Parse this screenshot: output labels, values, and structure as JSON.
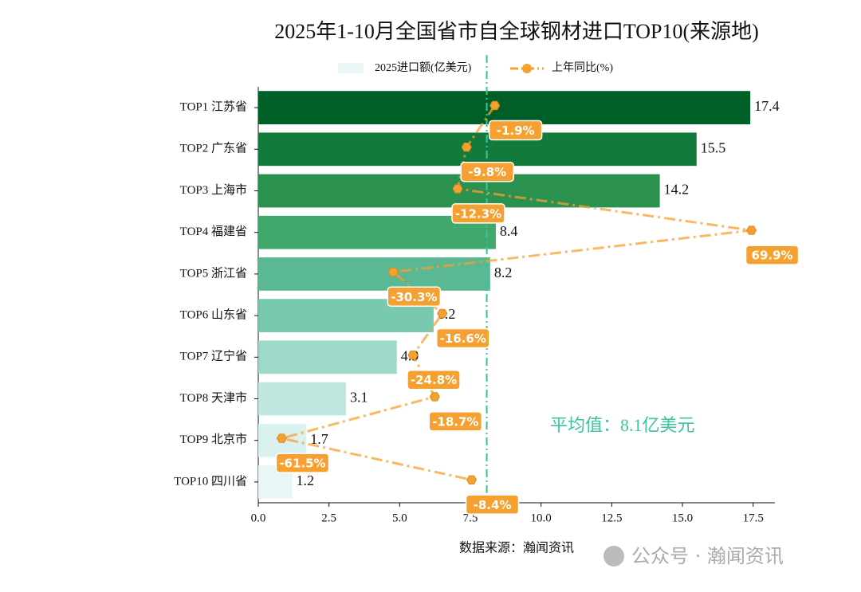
{
  "chart_data": {
    "type": "bar",
    "orientation": "horizontal",
    "title": "2025年1-10月全国省市自全球钢材进口TOP10(来源地)",
    "categories": [
      "TOP1 江苏省",
      "TOP2 广东省",
      "TOP3 上海市",
      "TOP4 福建省",
      "TOP5 浙江省",
      "TOP6 山东省",
      "TOP7 辽宁省",
      "TOP8 天津市",
      "TOP9 北京市",
      "TOP10 四川省"
    ],
    "series": [
      {
        "name": "2025进口额(亿美元)",
        "type": "bar",
        "colors": [
          "#005f27",
          "#127a3a",
          "#2a914f",
          "#41a96c",
          "#5ab992",
          "#78c9b0",
          "#9dd9c9",
          "#c0e7df",
          "#d9f1ef",
          "#e9f6f7"
        ],
        "values": [
          17.4,
          15.5,
          14.2,
          8.4,
          8.2,
          6.2,
          4.9,
          3.1,
          1.7,
          1.2
        ]
      },
      {
        "name": "上年同比(%)",
        "type": "line",
        "axis": "x2",
        "color": "#f5a030",
        "values": [
          -1.9,
          -9.8,
          -12.3,
          69.9,
          -30.3,
          -16.6,
          -24.8,
          -18.7,
          -61.5,
          -8.4
        ],
        "value_labels": [
          "-1.9%",
          "-9.8%",
          "-12.3%",
          "69.9%",
          "-30.3%",
          "-16.6%",
          "-24.8%",
          "-18.7%",
          "-61.5%",
          "-8.4%"
        ]
      }
    ],
    "xlim": [
      0,
      18.27
    ],
    "xticks": [
      {
        "value": 0,
        "label": "0.0"
      },
      2.5,
      {
        "value": 5,
        "label": "5.0"
      },
      7.5,
      {
        "value": 10,
        "label": "10.0"
      },
      12.5,
      {
        "value": 15,
        "label": "15.0"
      },
      17.5
    ],
    "x2lim": [
      -68.07,
      76.47
    ],
    "average_line": {
      "value": 8.08,
      "label": "平均值：8.1亿美元",
      "color": "#3cc3a0"
    },
    "source": "数据来源：瀚闻资讯",
    "watermark": "公众号 · 瀚闻资讯"
  }
}
